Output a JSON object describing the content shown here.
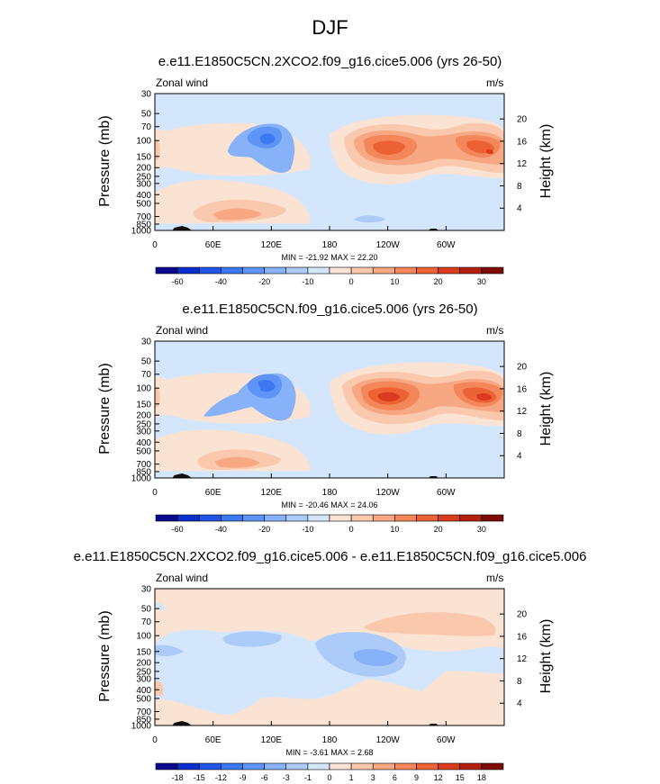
{
  "figure": {
    "title": "DJF"
  },
  "panels": [
    {
      "title": "e.e11.E1850C5CN.2XCO2.f09_g16.cice5.006 (yrs 26-50)",
      "field_label": "Zonal wind",
      "units": "m/s",
      "stats": "MIN = -21.92  MAX =  22.20",
      "y_left_label": "Pressure (mb)",
      "y_right_label": "Height (km)"
    },
    {
      "title": "e.e11.E1850C5CN.f09_g16.cice5.006 (yrs 26-50)",
      "field_label": "Zonal wind",
      "units": "m/s",
      "stats": "MIN = -20.46  MAX =  24.06",
      "y_left_label": "Pressure (mb)",
      "y_right_label": "Height (km)"
    },
    {
      "title": "e.e11.E1850C5CN.2XCO2.f09_g16.cice5.006 - e.e11.E1850C5CN.f09_g16.cice5.006",
      "field_label": "Zonal wind",
      "units": "m/s",
      "stats": "MIN =  -3.61  MAX =   2.68",
      "y_left_label": "Pressure (mb)",
      "y_right_label": "Height (km)"
    }
  ],
  "chart_data": [
    {
      "type": "contour",
      "panel": 0,
      "title": "e.e11.E1850C5CN.2XCO2.f09_g16.cice5.006 (yrs 26-50)",
      "variable": "Zonal wind",
      "units": "m/s",
      "min": -21.92,
      "max": 22.2,
      "pressure_ticks": [
        "30",
        "50",
        "70",
        "100",
        "150",
        "200",
        "250",
        "300",
        "400",
        "500",
        "700",
        "850",
        "1000"
      ],
      "height_ticks": [
        "20",
        "16",
        "12",
        "8",
        "4"
      ],
      "lon_ticks": [
        "0",
        "60E",
        "120E",
        "180",
        "120W",
        "60W"
      ],
      "colorbar_labels": [
        "-60",
        "-40",
        "-20",
        "-10",
        "0",
        "10",
        "20",
        "30"
      ],
      "colorbar_colors": [
        "#08088e",
        "#0a2fcc",
        "#2055e8",
        "#3c78f2",
        "#5f94f7",
        "#87b1f8",
        "#adcbf9",
        "#d3e6fb",
        "#fbe3d3",
        "#f9c8ad",
        "#f7a882",
        "#f3875a",
        "#ec6234",
        "#d83b1e",
        "#b3200f",
        "#7c0c04"
      ],
      "features": [
        {
          "label": "jet",
          "lon": 220,
          "p": 150,
          "value": 22
        },
        {
          "label": "jet",
          "lon": 320,
          "p": 150,
          "value": 20
        },
        {
          "label": "easterly",
          "lon": 110,
          "p": 100,
          "value": -20
        },
        {
          "label": "westerly",
          "lon": 85,
          "p": 700,
          "value": 10
        }
      ]
    },
    {
      "type": "contour",
      "panel": 1,
      "title": "e.e11.E1850C5CN.f09_g16.cice5.006 (yrs 26-50)",
      "variable": "Zonal wind",
      "units": "m/s",
      "min": -20.46,
      "max": 24.06,
      "pressure_ticks": [
        "30",
        "50",
        "70",
        "100",
        "150",
        "200",
        "250",
        "300",
        "400",
        "500",
        "700",
        "850",
        "1000"
      ],
      "height_ticks": [
        "20",
        "16",
        "12",
        "8",
        "4"
      ],
      "lon_ticks": [
        "0",
        "60E",
        "120E",
        "180",
        "120W",
        "60W"
      ],
      "colorbar_labels": [
        "-60",
        "-40",
        "-20",
        "-10",
        "0",
        "10",
        "20",
        "30"
      ],
      "colorbar_colors": [
        "#08088e",
        "#0a2fcc",
        "#2055e8",
        "#3c78f2",
        "#5f94f7",
        "#87b1f8",
        "#adcbf9",
        "#d3e6fb",
        "#fbe3d3",
        "#f9c8ad",
        "#f7a882",
        "#f3875a",
        "#ec6234",
        "#d83b1e",
        "#b3200f",
        "#7c0c04"
      ],
      "features": [
        {
          "label": "jet",
          "lon": 225,
          "p": 150,
          "value": 24
        },
        {
          "label": "jet",
          "lon": 320,
          "p": 150,
          "value": 22
        },
        {
          "label": "easterly",
          "lon": 110,
          "p": 100,
          "value": -20
        },
        {
          "label": "westerly",
          "lon": 90,
          "p": 700,
          "value": 10
        }
      ]
    },
    {
      "type": "contour",
      "panel": 2,
      "title": "e.e11.E1850C5CN.2XCO2.f09_g16.cice5.006 - e.e11.E1850C5CN.f09_g16.cice5.006",
      "variable": "Zonal wind",
      "units": "m/s",
      "min": -3.61,
      "max": 2.68,
      "pressure_ticks": [
        "30",
        "50",
        "70",
        "100",
        "150",
        "200",
        "250",
        "300",
        "400",
        "500",
        "700",
        "850",
        "1000"
      ],
      "height_ticks": [
        "20",
        "16",
        "12",
        "8",
        "4"
      ],
      "lon_ticks": [
        "0",
        "60E",
        "120E",
        "180",
        "120W",
        "60W"
      ],
      "colorbar_labels": [
        "-18",
        "-15",
        "-12",
        "-9",
        "-6",
        "-3",
        "-1",
        "0",
        "1",
        "3",
        "6",
        "9",
        "12",
        "15",
        "18"
      ],
      "colorbar_colors": [
        "#08088e",
        "#0a2fcc",
        "#2055e8",
        "#3c78f2",
        "#5f94f7",
        "#87b1f8",
        "#adcbf9",
        "#d3e6fb",
        "#fbe3d3",
        "#f9c8ad",
        "#f7a882",
        "#f3875a",
        "#ec6234",
        "#d83b1e",
        "#b3200f",
        "#7c0c04"
      ],
      "features": [
        {
          "label": "negative",
          "lon": 225,
          "p": 150,
          "value": -3
        },
        {
          "label": "negative",
          "lon": 105,
          "p": 70,
          "value": -1
        },
        {
          "label": "positive",
          "lon": 270,
          "p": 50,
          "value": 1
        }
      ]
    }
  ]
}
